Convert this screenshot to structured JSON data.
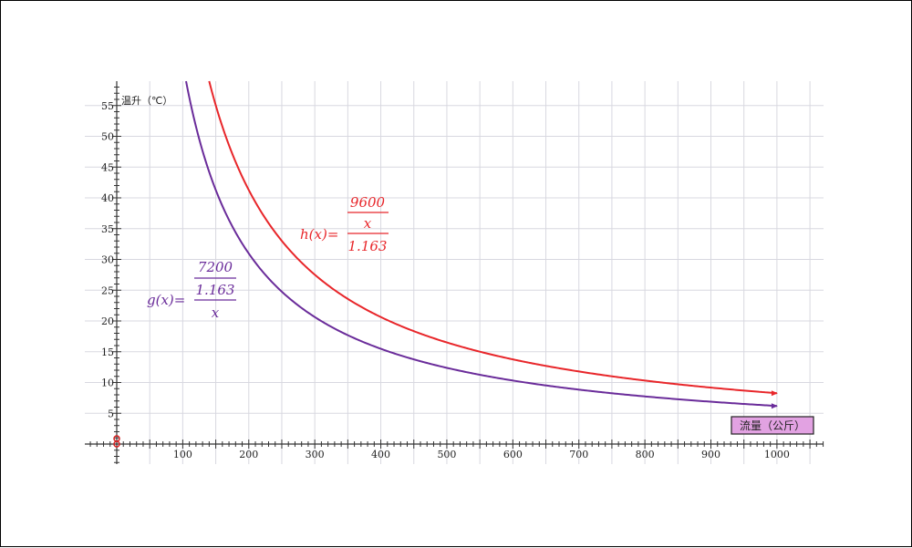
{
  "chart_data": {
    "type": "line",
    "ylabel": "温升（℃）",
    "xlabel": "流量（公斤）",
    "xlim": [
      50,
      1075
    ],
    "ylim": [
      -3.5,
      59
    ],
    "x_ticks": [
      100,
      200,
      300,
      400,
      500,
      600,
      700,
      800,
      900,
      1000
    ],
    "y_ticks": [
      5,
      10,
      15,
      20,
      25,
      30,
      35,
      40,
      45,
      50,
      55
    ],
    "grid": true,
    "series": [
      {
        "formula_prefix": "h(x)=",
        "numerator": "9600",
        "denominator_num": "x",
        "denominator_den": "1.163",
        "color": "#e8262a",
        "x_start": 140,
        "x_end": 1000,
        "values_at_ticks": {
          "200": 41.3,
          "300": 27.5,
          "400": 20.6,
          "500": 16.5,
          "600": 13.8,
          "700": 11.8,
          "800": 10.3,
          "900": 9.2,
          "1000": 8.3
        }
      },
      {
        "formula_prefix": "g(x)=",
        "numerator": "7200",
        "denominator_num": "1.163",
        "denominator_den": "x",
        "color": "#6a2c9a",
        "x_start": 105,
        "x_end": 1000,
        "values_at_ticks": {
          "200": 31.0,
          "300": 20.6,
          "400": 15.5,
          "500": 12.4,
          "600": 10.3,
          "700": 8.8,
          "800": 7.7,
          "900": 6.9,
          "1000": 6.2
        }
      }
    ],
    "colors": {
      "grid": "#d8d8e0",
      "axis": "#333333",
      "xlabel_box_fill": "#e2a2e2",
      "origin_marker": "#d42020"
    }
  }
}
